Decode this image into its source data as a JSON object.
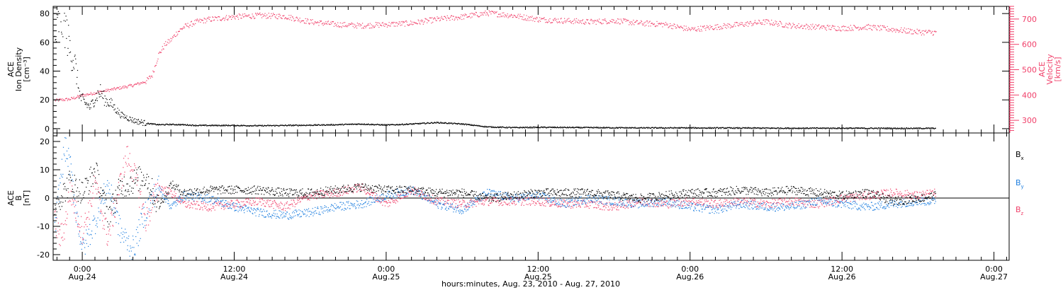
{
  "figure": {
    "x_axis_title": "hours:minutes, Aug. 23, 2010 - Aug. 27, 2010",
    "x_ticks": [
      {
        "time": "0:00",
        "date": "Aug.24",
        "hour": 24
      },
      {
        "time": "12:00",
        "date": "Aug.24",
        "hour": 36
      },
      {
        "time": "0:00",
        "date": "Aug.25",
        "hour": 48
      },
      {
        "time": "12:00",
        "date": "Aug.25",
        "hour": 60
      },
      {
        "time": "0:00",
        "date": "Aug.26",
        "hour": 72
      },
      {
        "time": "12:00",
        "date": "Aug.26",
        "hour": 84
      },
      {
        "time": "0:00",
        "date": "Aug.27",
        "hour": 96
      }
    ]
  },
  "colors": {
    "density": "#000000",
    "velocity": "#f0406a",
    "bx": "#000000",
    "by": "#1f7fdf",
    "bz": "#f0406a"
  },
  "chart_data": [
    {
      "type": "scatter",
      "panel": "top",
      "x_unit": "hours since Aug. 23, 2010 00:00",
      "xlim": [
        21.7,
        97.2
      ],
      "left_axis": {
        "label_lines": [
          "ACE",
          "Ion Density",
          "[cm⁻³]"
        ],
        "ylim": [
          -3,
          85
        ],
        "ticks": [
          0,
          20,
          40,
          60,
          80
        ]
      },
      "right_axis": {
        "label_lines": [
          "ACE",
          "Velocity",
          "[km/s]"
        ],
        "ylim": [
          250,
          750
        ],
        "ticks": [
          300,
          400,
          500,
          600,
          700
        ]
      },
      "series": [
        {
          "axis": "left",
          "x": [
            21.8,
            22.2,
            22.6,
            23.0,
            23.4,
            23.8,
            24.2,
            24.6,
            25.0,
            25.4,
            25.8,
            26.2,
            26.6,
            27.0,
            27.5,
            28.0,
            28.5,
            29.0,
            29.5,
            30.0,
            31.0,
            32.0,
            33.0,
            34.0,
            36.0,
            38.0,
            40.0,
            42.0,
            44.0,
            46.0,
            48.0,
            50.0,
            52.0,
            54.0,
            56.0,
            58.0,
            60.0,
            64.0,
            68.0,
            72.0,
            76.0,
            80.0,
            84.0,
            88.0,
            91.4
          ],
          "y": [
            60,
            78,
            72,
            55,
            45,
            22,
            18,
            15,
            22,
            26,
            20,
            18,
            14,
            10,
            8,
            6,
            5,
            4,
            3.5,
            3,
            3.2,
            3,
            2.5,
            2.5,
            2.5,
            2.3,
            2.5,
            2.7,
            3,
            3.5,
            2.8,
            3.5,
            4.5,
            3.5,
            1.5,
            1,
            1.2,
            1,
            0.8,
            0.8,
            0.7,
            0.6,
            0.6,
            0.5,
            0.5
          ]
        },
        {
          "axis": "right",
          "x": [
            21.8,
            23.0,
            24.0,
            25.0,
            26.0,
            27.0,
            28.0,
            29.0,
            29.5,
            30.0,
            30.5,
            31.0,
            31.5,
            32.0,
            33.0,
            34.0,
            35.0,
            36.0,
            38.0,
            40.0,
            42.0,
            44.0,
            46.0,
            48.0,
            50.0,
            52.0,
            54.0,
            56.0,
            58.0,
            60.0,
            62.0,
            64.0,
            66.0,
            68.0,
            70.0,
            72.0,
            74.0,
            76.0,
            78.0,
            80.0,
            82.0,
            84.0,
            86.0,
            88.0,
            90.0,
            91.4
          ],
          "y": [
            380,
            385,
            400,
            410,
            420,
            430,
            440,
            455,
            480,
            560,
            600,
            620,
            650,
            670,
            690,
            700,
            705,
            710,
            715,
            712,
            690,
            680,
            675,
            680,
            685,
            700,
            710,
            725,
            715,
            700,
            695,
            690,
            695,
            685,
            680,
            660,
            670,
            680,
            690,
            675,
            670,
            665,
            670,
            660,
            650,
            648
          ]
        }
      ]
    },
    {
      "type": "scatter",
      "panel": "bottom",
      "x_unit": "hours since Aug. 23, 2010 00:00",
      "xlim": [
        21.7,
        97.2
      ],
      "y_axis": {
        "label_lines": [
          "ACE",
          "B",
          "[nT]"
        ],
        "ylim": [
          -22,
          23
        ],
        "ticks": [
          -20,
          -10,
          0,
          10,
          20
        ]
      },
      "zero_line": true,
      "series": [
        {
          "name": "Bx",
          "x": [
            21.8,
            22.5,
            23.0,
            24.0,
            25.0,
            26.0,
            27.0,
            28.0,
            29.0,
            30.0,
            31.0,
            32.0,
            34.0,
            36.0,
            38.0,
            40.0,
            42.0,
            44.0,
            46.0,
            48.0,
            50.0,
            52.0,
            54.0,
            56.0,
            58.0,
            60.0,
            62.0,
            64.0,
            66.0,
            68.0,
            70.0,
            72.0,
            74.0,
            76.0,
            78.0,
            80.0,
            82.0,
            84.0,
            86.0,
            88.0,
            90.0,
            91.4
          ],
          "y": [
            -2,
            2,
            6,
            2,
            10,
            -6,
            4,
            6,
            8,
            -3,
            5,
            2,
            3,
            3,
            3,
            2,
            2,
            3,
            4,
            3,
            3,
            2,
            2,
            0,
            1,
            2,
            2,
            2,
            1,
            0,
            1,
            2,
            2,
            3,
            2,
            3,
            2,
            1,
            2,
            -1,
            0,
            1
          ]
        },
        {
          "name": "By",
          "x": [
            21.8,
            22.2,
            22.6,
            23.0,
            23.5,
            24.0,
            25.0,
            26.0,
            27.0,
            28.0,
            29.0,
            30.0,
            31.0,
            32.0,
            34.0,
            36.0,
            38.0,
            40.0,
            42.0,
            44.0,
            46.0,
            48.0,
            50.0,
            52.0,
            54.0,
            56.0,
            58.0,
            60.0,
            62.0,
            64.0,
            66.0,
            68.0,
            70.0,
            72.0,
            74.0,
            76.0,
            78.0,
            80.0,
            82.0,
            84.0,
            86.0,
            88.0,
            90.0,
            91.4
          ],
          "y": [
            -12,
            5,
            18,
            12,
            -5,
            -18,
            -8,
            5,
            -12,
            -18,
            -4,
            4,
            -3,
            1,
            0,
            -3,
            -5,
            -6,
            -5,
            -3,
            -2,
            1,
            3,
            -2,
            -4,
            2,
            0,
            1,
            -2,
            0,
            -1,
            -2,
            -1,
            -3,
            -4,
            -2,
            -3,
            -3,
            -1,
            -2,
            -3,
            -2,
            -1,
            -1
          ]
        },
        {
          "name": "Bz",
          "x": [
            21.8,
            22.2,
            22.6,
            23.0,
            23.5,
            24.0,
            25.0,
            26.0,
            27.0,
            27.5,
            28.0,
            29.0,
            30.0,
            31.0,
            32.0,
            34.0,
            36.0,
            38.0,
            40.0,
            42.0,
            44.0,
            46.0,
            48.0,
            50.0,
            52.0,
            54.0,
            56.0,
            58.0,
            60.0,
            62.0,
            64.0,
            66.0,
            68.0,
            70.0,
            72.0,
            74.0,
            76.0,
            78.0,
            80.0,
            82.0,
            84.0,
            86.0,
            88.0,
            90.0,
            91.4
          ],
          "y": [
            -8,
            -14,
            -10,
            3,
            -5,
            -12,
            5,
            -14,
            6,
            15,
            10,
            -8,
            4,
            2,
            -2,
            -3,
            -2,
            -1,
            -3,
            1,
            2,
            4,
            -2,
            3,
            -1,
            -2,
            -1,
            -1,
            -1,
            -2,
            -2,
            -3,
            -1,
            -2,
            -1,
            -2,
            -1,
            -2,
            -1,
            -2,
            0,
            1,
            2,
            1,
            2
          ]
        }
      ]
    }
  ]
}
